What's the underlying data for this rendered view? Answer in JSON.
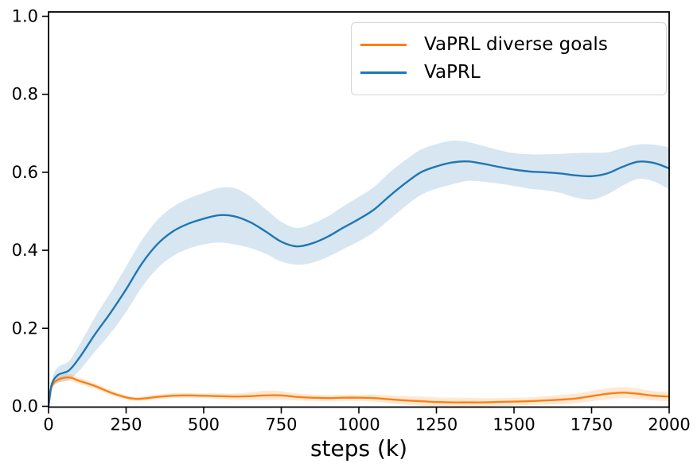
{
  "chart_data": {
    "type": "line",
    "title": "",
    "xlabel": "steps (k)",
    "ylabel": "",
    "xlim": [
      0,
      2000
    ],
    "ylim": [
      0.0,
      1.0
    ],
    "grid": false,
    "xticks": [
      "0",
      "250",
      "500",
      "750",
      "1000",
      "1250",
      "1500",
      "1750",
      "2000"
    ],
    "yticks": [
      "0.0",
      "0.2",
      "0.4",
      "0.6",
      "0.8",
      "1.0"
    ],
    "legend": {
      "position": "upper right",
      "entries": [
        {
          "label": "VaPRL diverse goals",
          "color": "#ff7f0e"
        },
        {
          "label": "VaPRL",
          "color": "#1f77b4"
        }
      ]
    },
    "series": [
      {
        "name": "VaPRL diverse goals",
        "color": "#ff7f0e",
        "band_alpha": 0.18,
        "x": [
          0,
          10,
          30,
          66,
          100,
          150,
          215,
          280,
          350,
          400,
          450,
          500,
          550,
          600,
          650,
          700,
          750,
          800,
          850,
          900,
          950,
          1000,
          1050,
          1100,
          1150,
          1200,
          1250,
          1300,
          1350,
          1400,
          1450,
          1500,
          1550,
          1600,
          1650,
          1700,
          1750,
          1800,
          1850,
          1900,
          1950,
          2000
        ],
        "y": [
          0,
          0.05,
          0.068,
          0.074,
          0.065,
          0.052,
          0.031,
          0.019,
          0.024,
          0.027,
          0.028,
          0.027,
          0.026,
          0.025,
          0.026,
          0.028,
          0.028,
          0.024,
          0.022,
          0.021,
          0.022,
          0.022,
          0.021,
          0.018,
          0.015,
          0.013,
          0.011,
          0.01,
          0.01,
          0.01,
          0.011,
          0.012,
          0.013,
          0.015,
          0.017,
          0.02,
          0.026,
          0.032,
          0.035,
          0.032,
          0.027,
          0.025
        ],
        "band": [
          0.002,
          0.005,
          0.008,
          0.009,
          0.008,
          0.007,
          0.006,
          0.005,
          0.006,
          0.006,
          0.006,
          0.006,
          0.007,
          0.008,
          0.01,
          0.012,
          0.011,
          0.009,
          0.008,
          0.008,
          0.008,
          0.008,
          0.009,
          0.01,
          0.011,
          0.012,
          0.012,
          0.012,
          0.012,
          0.011,
          0.01,
          0.01,
          0.01,
          0.011,
          0.012,
          0.012,
          0.013,
          0.014,
          0.014,
          0.013,
          0.012,
          0.012
        ]
      },
      {
        "name": "VaPRL",
        "color": "#1f77b4",
        "band_alpha": 0.18,
        "x": [
          0,
          10,
          30,
          66,
          100,
          150,
          200,
          250,
          300,
          350,
          400,
          450,
          500,
          550,
          600,
          650,
          700,
          750,
          800,
          850,
          900,
          950,
          1000,
          1050,
          1100,
          1150,
          1200,
          1250,
          1300,
          1350,
          1400,
          1450,
          1500,
          1550,
          1600,
          1650,
          1700,
          1750,
          1800,
          1850,
          1900,
          1950,
          2000
        ],
        "y": [
          0,
          0.055,
          0.08,
          0.092,
          0.125,
          0.185,
          0.24,
          0.3,
          0.365,
          0.415,
          0.448,
          0.468,
          0.481,
          0.49,
          0.487,
          0.472,
          0.448,
          0.422,
          0.41,
          0.418,
          0.435,
          0.458,
          0.48,
          0.505,
          0.54,
          0.572,
          0.6,
          0.615,
          0.625,
          0.628,
          0.622,
          0.614,
          0.607,
          0.602,
          0.6,
          0.597,
          0.592,
          0.59,
          0.597,
          0.614,
          0.627,
          0.624,
          0.61
        ],
        "band": [
          0.004,
          0.012,
          0.02,
          0.024,
          0.033,
          0.044,
          0.052,
          0.058,
          0.06,
          0.062,
          0.063,
          0.064,
          0.066,
          0.07,
          0.072,
          0.066,
          0.057,
          0.051,
          0.047,
          0.05,
          0.052,
          0.055,
          0.057,
          0.058,
          0.06,
          0.059,
          0.058,
          0.057,
          0.056,
          0.05,
          0.046,
          0.043,
          0.042,
          0.044,
          0.046,
          0.05,
          0.057,
          0.06,
          0.054,
          0.048,
          0.044,
          0.047,
          0.054
        ]
      }
    ],
    "axes": {
      "spine_color": "#000000",
      "tick_color": "#000000",
      "label_color": "#000000"
    }
  }
}
